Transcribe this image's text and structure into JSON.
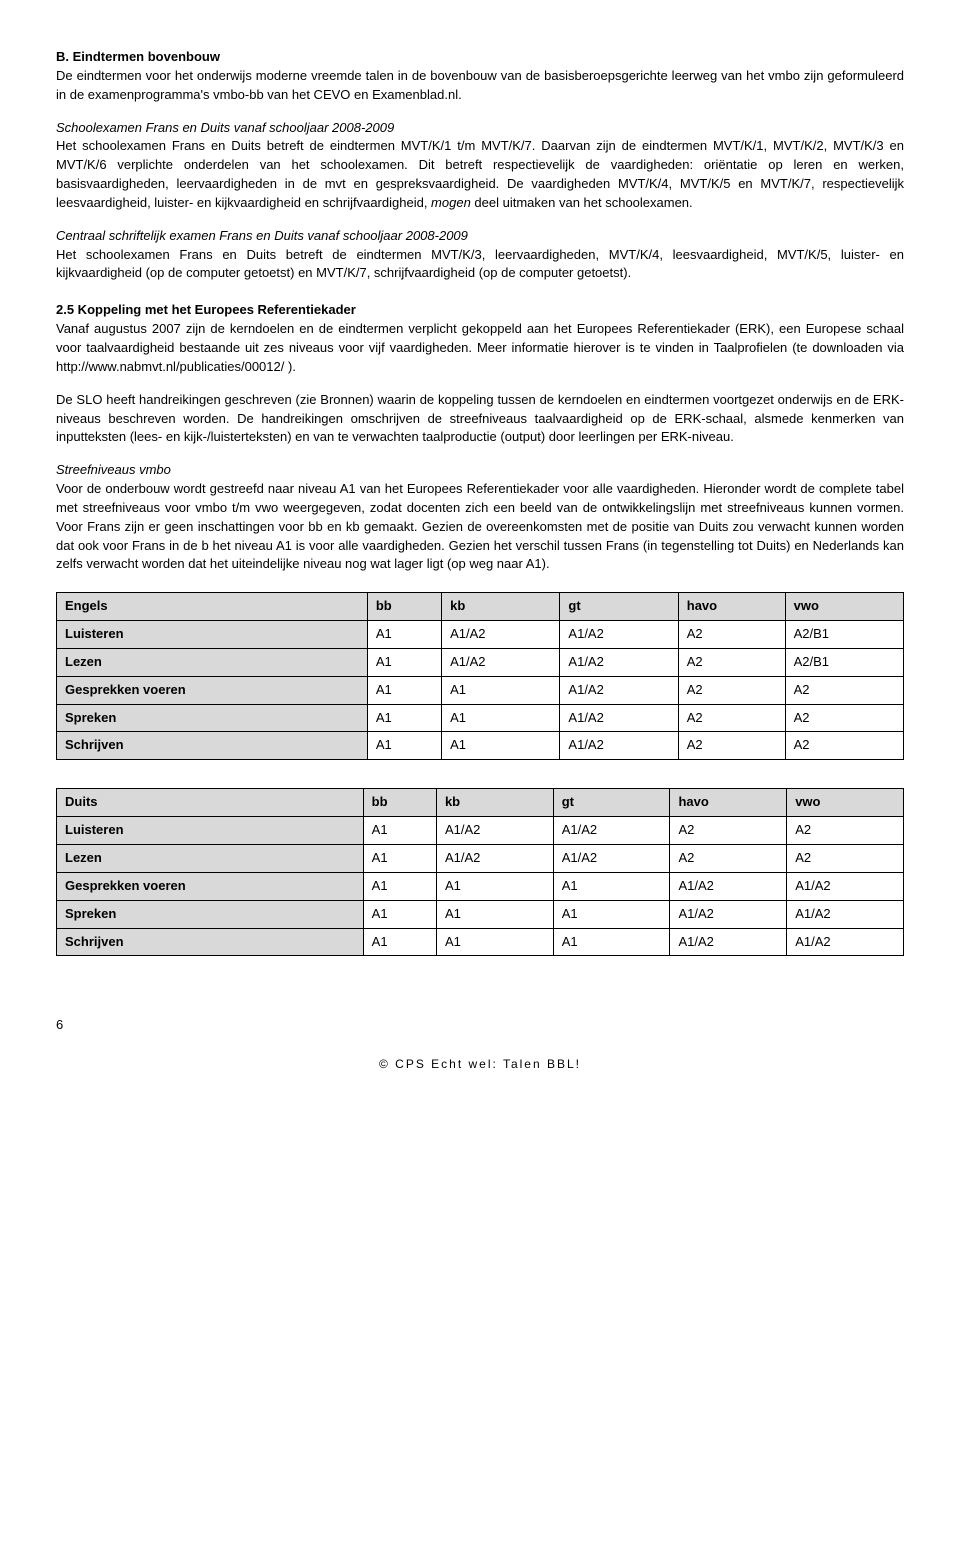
{
  "sec_b": {
    "title": "B. Eindtermen bovenbouw",
    "p1": "De eindtermen voor het onderwijs moderne vreemde talen in de bovenbouw van de basisberoepsgerichte leerweg van het vmbo zijn geformuleerd in de examenprogramma's vmbo-bb van het CEVO en Examenblad.nl.",
    "sub1_title": "Schoolexamen Frans en Duits vanaf schooljaar 2008-2009",
    "sub1_body": "Het schoolexamen Frans en Duits betreft de eindtermen MVT/K/1 t/m  MVT/K/7. Daarvan zijn de eindtermen MVT/K/1, MVT/K/2, MVT/K/3 en MVT/K/6 verplichte onderdelen van het schoolexamen. Dit betreft respectievelijk de vaardigheden: oriëntatie op leren en werken, basisvaardigheden, leervaardigheden in de mvt en gespreksvaardigheid. De vaardigheden MVT/K/4, MVT/K/5 en MVT/K/7, respectievelijk leesvaardigheid, luister- en kijkvaardigheid en schrijfvaardigheid, ",
    "sub1_mogen": "mogen",
    "sub1_body2": " deel uitmaken van het schoolexamen.",
    "sub2_title": "Centraal schriftelijk examen Frans en Duits vanaf schooljaar 2008-2009",
    "sub2_body": "Het schoolexamen Frans en Duits betreft de eindtermen MVT/K/3, leervaardigheden,  MVT/K/4, leesvaardigheid, MVT/K/5, luister- en kijkvaardigheid (op de computer getoetst) en MVT/K/7, schrijfvaardigheid (op de computer getoetst)."
  },
  "sec_25": {
    "title": "2.5  Koppeling met het Europees Referentiekader",
    "p1": "Vanaf augustus 2007 zijn de kerndoelen en de eindtermen verplicht gekoppeld aan het Europees Referentiekader (ERK), een Europese schaal voor taalvaardigheid bestaande uit zes niveaus voor vijf vaardigheden. Meer informatie hierover is te vinden in Taalprofielen (te downloaden via http://www.nabmvt.nl/publicaties/00012/ ).",
    "p2": "De SLO heeft handreikingen geschreven (zie Bronnen) waarin de koppeling tussen de kerndoelen en eindtermen voortgezet onderwijs en de ERK-niveaus beschreven worden. De handreikingen omschrijven de streefniveaus taalvaardigheid op de ERK-schaal, alsmede kenmerken van inputteksten (lees- en kijk-/luisterteksten) en van te verwachten taalproductie (output) door leerlingen per ERK-niveau.",
    "streef_title": "Streefniveaus vmbo",
    "streef_body": "Voor de onderbouw wordt gestreefd naar niveau A1 van het Europees Referentiekader voor alle vaardigheden. Hieronder wordt de complete tabel met streefniveaus voor vmbo t/m vwo weergegeven, zodat docenten zich een beeld van de ontwikkelingslijn met streefniveaus kunnen vormen. Voor Frans zijn er geen inschattingen voor bb en kb gemaakt. Gezien de overeenkomsten met de positie van Duits zou verwacht kunnen worden dat ook voor Frans in de b het niveau A1 is voor alle vaardigheden. Gezien het verschil tussen Frans (in tegenstelling tot Duits) en Nederlands kan zelfs verwacht worden dat het uiteindelijke niveau nog wat lager ligt (op weg naar A1)."
  },
  "tables": {
    "cols": [
      "bb",
      "kb",
      "gt",
      "havo",
      "vwo"
    ],
    "rows": [
      "Luisteren",
      "Lezen",
      "Gesprekken voeren",
      "Spreken",
      "Schrijven"
    ],
    "engels": {
      "name": "Engels",
      "data": [
        [
          "A1",
          "A1/A2",
          "A1/A2",
          "A2",
          "A2/B1"
        ],
        [
          "A1",
          "A1/A2",
          "A1/A2",
          "A2",
          "A2/B1"
        ],
        [
          "A1",
          "A1",
          "A1/A2",
          "A2",
          "A2"
        ],
        [
          "A1",
          "A1",
          "A1/A2",
          "A2",
          "A2"
        ],
        [
          "A1",
          "A1",
          "A1/A2",
          "A2",
          "A2"
        ]
      ]
    },
    "duits": {
      "name": "Duits",
      "data": [
        [
          "A1",
          "A1/A2",
          "A1/A2",
          "A2",
          "A2"
        ],
        [
          "A1",
          "A1/A2",
          "A1/A2",
          "A2",
          "A2"
        ],
        [
          "A1",
          "A1",
          "A1",
          "A1/A2",
          "A1/A2"
        ],
        [
          "A1",
          "A1",
          "A1",
          "A1/A2",
          "A1/A2"
        ],
        [
          "A1",
          "A1",
          "A1",
          "A1/A2",
          "A1/A2"
        ]
      ]
    }
  },
  "footer": {
    "page": "6",
    "text": "© CPS Echt wel: Talen BBL!"
  }
}
